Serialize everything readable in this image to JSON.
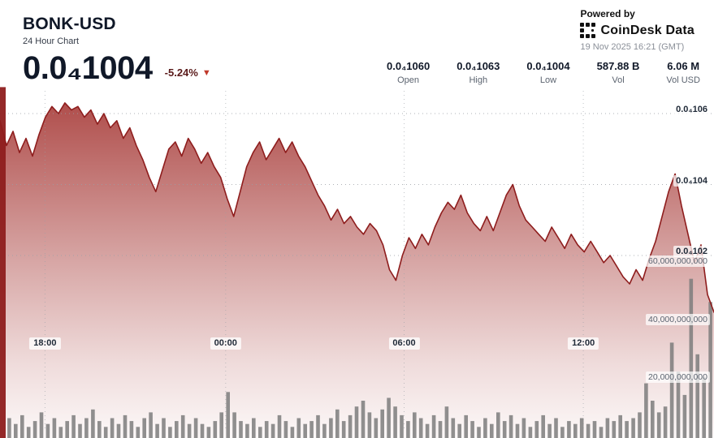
{
  "header": {
    "symbol": "BONK-USD",
    "subtitle": "24 Hour Chart",
    "price": "0.0₄1004",
    "change": "-5.24%",
    "powered_by": "Powered by",
    "brand": "CoinDesk Data",
    "timestamp": "19 Nov 2025 16:21 (GMT)"
  },
  "stats": [
    {
      "value": "0.0₄1060",
      "label": "Open"
    },
    {
      "value": "0.0₄1063",
      "label": "High"
    },
    {
      "value": "0.0₄1004",
      "label": "Low"
    },
    {
      "value": "587.88 B",
      "label": "Vol"
    },
    {
      "value": "6.06 M",
      "label": "Vol USD"
    }
  ],
  "chart_data": {
    "type": "area",
    "title": "BONK-USD 24 Hour Chart",
    "price_scale_note": "price values are in units of 1e-8 USD (0.0subscript4 notation)",
    "x_axis": {
      "labels": [
        "18:00",
        "00:00",
        "06:00",
        "12:00"
      ],
      "label_positions": [
        0.063,
        0.316,
        0.566,
        0.817
      ]
    },
    "price_axis": {
      "ticks": [
        "0.0₄106",
        "0.0₄104",
        "0.0₄102"
      ],
      "tick_values": [
        1060,
        1040,
        1020
      ],
      "range": [
        1000,
        1068
      ],
      "grid": true
    },
    "volume_axis": {
      "ticks": [
        "60,000,000,000",
        "40,000,000,000",
        "20,000,000,000"
      ],
      "tick_values": [
        60,
        40,
        20
      ],
      "range": [
        0,
        125
      ],
      "unit": "billions"
    },
    "price_series": [
      1058,
      1051,
      1055,
      1049,
      1053,
      1048,
      1054,
      1059,
      1062,
      1060,
      1063,
      1061,
      1062,
      1059,
      1061,
      1057,
      1060,
      1056,
      1058,
      1053,
      1056,
      1051,
      1047,
      1042,
      1038,
      1044,
      1050,
      1052,
      1048,
      1053,
      1050,
      1046,
      1049,
      1045,
      1042,
      1036,
      1031,
      1038,
      1045,
      1049,
      1052,
      1047,
      1050,
      1053,
      1049,
      1052,
      1048,
      1045,
      1041,
      1037,
      1034,
      1030,
      1033,
      1029,
      1031,
      1028,
      1026,
      1029,
      1027,
      1023,
      1016,
      1013,
      1020,
      1025,
      1022,
      1026,
      1023,
      1028,
      1032,
      1035,
      1033,
      1037,
      1032,
      1029,
      1027,
      1031,
      1027,
      1032,
      1037,
      1040,
      1034,
      1030,
      1028,
      1026,
      1024,
      1028,
      1025,
      1022,
      1026,
      1023,
      1021,
      1024,
      1021,
      1018,
      1020,
      1017,
      1014,
      1012,
      1016,
      1013,
      1019,
      1024,
      1031,
      1038,
      1043,
      1034,
      1026,
      1018,
      1023,
      1009,
      1004
    ],
    "volume_series_billions": [
      120,
      6,
      4,
      7,
      3,
      5,
      8,
      4,
      6,
      3,
      5,
      7,
      4,
      6,
      9,
      5,
      3,
      6,
      4,
      7,
      5,
      3,
      6,
      8,
      4,
      6,
      3,
      5,
      7,
      4,
      6,
      4,
      3,
      5,
      8,
      15,
      8,
      5,
      4,
      6,
      3,
      5,
      4,
      7,
      5,
      3,
      6,
      4,
      5,
      7,
      4,
      6,
      9,
      5,
      7,
      10,
      12,
      8,
      6,
      9,
      13,
      10,
      7,
      5,
      8,
      6,
      4,
      7,
      5,
      10,
      6,
      4,
      7,
      5,
      3,
      6,
      4,
      8,
      5,
      7,
      4,
      6,
      3,
      5,
      7,
      4,
      6,
      3,
      5,
      4,
      6,
      4,
      5,
      3,
      6,
      5,
      7,
      5,
      6,
      8,
      18,
      12,
      8,
      10,
      32,
      22,
      14,
      54,
      28,
      20,
      46
    ],
    "legend": "none",
    "colors": {
      "line": "#8e1d1d",
      "area_top": "#9c221f",
      "volume_bar": "#7d7d7d",
      "first_volume_bar": "#8e1d1d",
      "grid": "#9aa0a6",
      "accent_down": "#c0392b",
      "heading": "#101828",
      "muted": "#5c6470"
    }
  }
}
